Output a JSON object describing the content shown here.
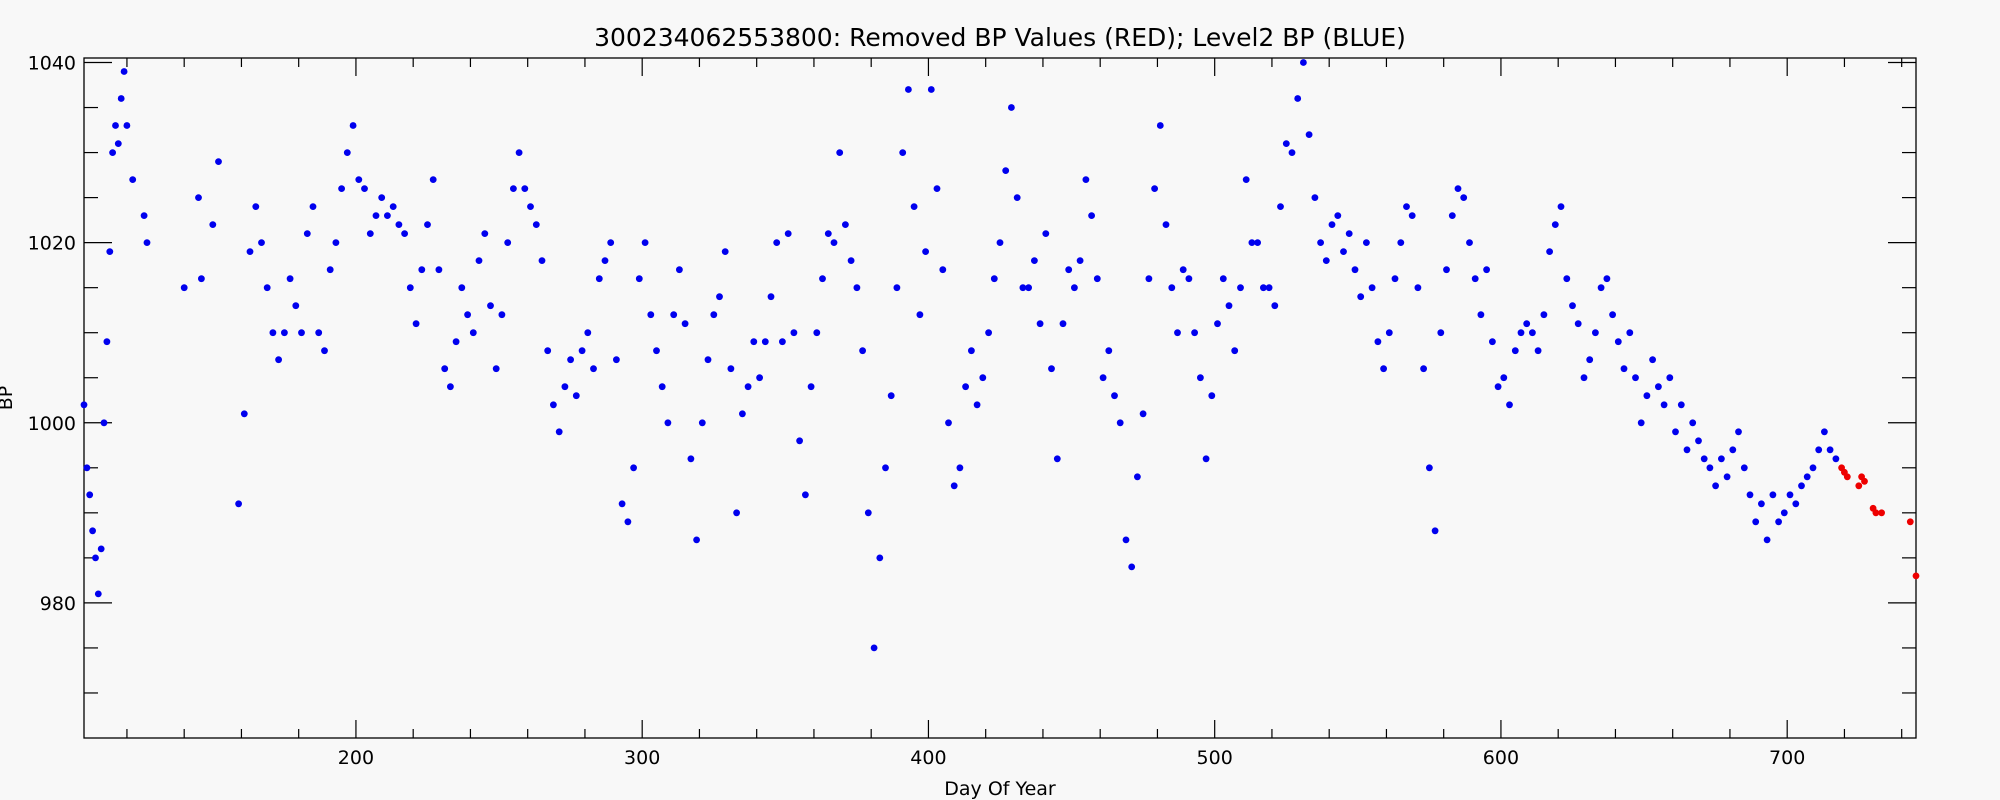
{
  "chart_data": {
    "type": "scatter",
    "title": "300234062553800: Removed BP Values (RED); Level2 BP (BLUE)",
    "xlabel": "Day Of Year",
    "ylabel": "BP",
    "xlim": [
      105,
      745
    ],
    "ylim": [
      965,
      1040.5
    ],
    "x_ticks": [
      200,
      300,
      400,
      500,
      600,
      700
    ],
    "y_ticks": [
      980,
      1000,
      1020,
      1040
    ],
    "grid": false,
    "series": [
      {
        "color": "#0000ee",
        "points": [
          [
            105,
            1002
          ],
          [
            106,
            995
          ],
          [
            107,
            992
          ],
          [
            108,
            988
          ],
          [
            109,
            985
          ],
          [
            110,
            981
          ],
          [
            111,
            986
          ],
          [
            112,
            1000
          ],
          [
            113,
            1009
          ],
          [
            114,
            1019
          ],
          [
            115,
            1030
          ],
          [
            116,
            1033
          ],
          [
            117,
            1031
          ],
          [
            118,
            1036
          ],
          [
            119,
            1039
          ],
          [
            120,
            1033
          ],
          [
            122,
            1027
          ],
          [
            126,
            1023
          ],
          [
            127,
            1020
          ],
          [
            140,
            1015
          ],
          [
            145,
            1025
          ],
          [
            146,
            1016
          ],
          [
            150,
            1022
          ],
          [
            152,
            1029
          ],
          [
            159,
            991
          ],
          [
            161,
            1001
          ],
          [
            163,
            1019
          ],
          [
            165,
            1024
          ],
          [
            167,
            1020
          ],
          [
            169,
            1015
          ],
          [
            171,
            1010
          ],
          [
            173,
            1007
          ],
          [
            175,
            1010
          ],
          [
            177,
            1016
          ],
          [
            179,
            1013
          ],
          [
            181,
            1010
          ],
          [
            183,
            1021
          ],
          [
            185,
            1024
          ],
          [
            187,
            1010
          ],
          [
            189,
            1008
          ],
          [
            191,
            1017
          ],
          [
            193,
            1020
          ],
          [
            195,
            1026
          ],
          [
            197,
            1030
          ],
          [
            199,
            1033
          ],
          [
            201,
            1027
          ],
          [
            203,
            1026
          ],
          [
            205,
            1021
          ],
          [
            207,
            1023
          ],
          [
            209,
            1025
          ],
          [
            211,
            1023
          ],
          [
            213,
            1024
          ],
          [
            215,
            1022
          ],
          [
            217,
            1021
          ],
          [
            219,
            1015
          ],
          [
            221,
            1011
          ],
          [
            223,
            1017
          ],
          [
            225,
            1022
          ],
          [
            227,
            1027
          ],
          [
            229,
            1017
          ],
          [
            231,
            1006
          ],
          [
            233,
            1004
          ],
          [
            235,
            1009
          ],
          [
            237,
            1015
          ],
          [
            239,
            1012
          ],
          [
            241,
            1010
          ],
          [
            243,
            1018
          ],
          [
            245,
            1021
          ],
          [
            247,
            1013
          ],
          [
            249,
            1006
          ],
          [
            251,
            1012
          ],
          [
            253,
            1020
          ],
          [
            255,
            1026
          ],
          [
            257,
            1030
          ],
          [
            259,
            1026
          ],
          [
            261,
            1024
          ],
          [
            263,
            1022
          ],
          [
            265,
            1018
          ],
          [
            267,
            1008
          ],
          [
            269,
            1002
          ],
          [
            271,
            999
          ],
          [
            273,
            1004
          ],
          [
            275,
            1007
          ],
          [
            277,
            1003
          ],
          [
            279,
            1008
          ],
          [
            281,
            1010
          ],
          [
            283,
            1006
          ],
          [
            285,
            1016
          ],
          [
            287,
            1018
          ],
          [
            289,
            1020
          ],
          [
            291,
            1007
          ],
          [
            293,
            991
          ],
          [
            295,
            989
          ],
          [
            297,
            995
          ],
          [
            299,
            1016
          ],
          [
            301,
            1020
          ],
          [
            303,
            1012
          ],
          [
            305,
            1008
          ],
          [
            307,
            1004
          ],
          [
            309,
            1000
          ],
          [
            311,
            1012
          ],
          [
            313,
            1017
          ],
          [
            315,
            1011
          ],
          [
            317,
            996
          ],
          [
            319,
            987
          ],
          [
            321,
            1000
          ],
          [
            323,
            1007
          ],
          [
            325,
            1012
          ],
          [
            327,
            1014
          ],
          [
            329,
            1019
          ],
          [
            331,
            1006
          ],
          [
            333,
            990
          ],
          [
            335,
            1001
          ],
          [
            337,
            1004
          ],
          [
            339,
            1009
          ],
          [
            341,
            1005
          ],
          [
            343,
            1009
          ],
          [
            345,
            1014
          ],
          [
            347,
            1020
          ],
          [
            349,
            1009
          ],
          [
            351,
            1021
          ],
          [
            353,
            1010
          ],
          [
            355,
            998
          ],
          [
            357,
            992
          ],
          [
            359,
            1004
          ],
          [
            361,
            1010
          ],
          [
            363,
            1016
          ],
          [
            365,
            1021
          ],
          [
            367,
            1020
          ],
          [
            369,
            1030
          ],
          [
            371,
            1022
          ],
          [
            373,
            1018
          ],
          [
            375,
            1015
          ],
          [
            377,
            1008
          ],
          [
            379,
            990
          ],
          [
            381,
            975
          ],
          [
            383,
            985
          ],
          [
            385,
            995
          ],
          [
            387,
            1003
          ],
          [
            389,
            1015
          ],
          [
            391,
            1030
          ],
          [
            393,
            1037
          ],
          [
            395,
            1024
          ],
          [
            397,
            1012
          ],
          [
            399,
            1019
          ],
          [
            401,
            1037
          ],
          [
            403,
            1026
          ],
          [
            405,
            1017
          ],
          [
            407,
            1000
          ],
          [
            409,
            993
          ],
          [
            411,
            995
          ],
          [
            413,
            1004
          ],
          [
            415,
            1008
          ],
          [
            417,
            1002
          ],
          [
            419,
            1005
          ],
          [
            421,
            1010
          ],
          [
            423,
            1016
          ],
          [
            425,
            1020
          ],
          [
            427,
            1028
          ],
          [
            429,
            1035
          ],
          [
            431,
            1025
          ],
          [
            433,
            1015
          ],
          [
            435,
            1015
          ],
          [
            437,
            1018
          ],
          [
            439,
            1011
          ],
          [
            441,
            1021
          ],
          [
            443,
            1006
          ],
          [
            445,
            996
          ],
          [
            447,
            1011
          ],
          [
            449,
            1017
          ],
          [
            451,
            1015
          ],
          [
            453,
            1018
          ],
          [
            455,
            1027
          ],
          [
            457,
            1023
          ],
          [
            459,
            1016
          ],
          [
            461,
            1005
          ],
          [
            463,
            1008
          ],
          [
            465,
            1003
          ],
          [
            467,
            1000
          ],
          [
            469,
            987
          ],
          [
            471,
            984
          ],
          [
            473,
            994
          ],
          [
            475,
            1001
          ],
          [
            477,
            1016
          ],
          [
            479,
            1026
          ],
          [
            481,
            1033
          ],
          [
            483,
            1022
          ],
          [
            485,
            1015
          ],
          [
            487,
            1010
          ],
          [
            489,
            1017
          ],
          [
            491,
            1016
          ],
          [
            493,
            1010
          ],
          [
            495,
            1005
          ],
          [
            497,
            996
          ],
          [
            499,
            1003
          ],
          [
            501,
            1011
          ],
          [
            503,
            1016
          ],
          [
            505,
            1013
          ],
          [
            507,
            1008
          ],
          [
            509,
            1015
          ],
          [
            511,
            1027
          ],
          [
            513,
            1020
          ],
          [
            515,
            1020
          ],
          [
            517,
            1015
          ],
          [
            519,
            1015
          ],
          [
            521,
            1013
          ],
          [
            523,
            1024
          ],
          [
            525,
            1031
          ],
          [
            527,
            1030
          ],
          [
            529,
            1036
          ],
          [
            531,
            1040
          ],
          [
            533,
            1032
          ],
          [
            535,
            1025
          ],
          [
            537,
            1020
          ],
          [
            539,
            1018
          ],
          [
            541,
            1022
          ],
          [
            543,
            1023
          ],
          [
            545,
            1019
          ],
          [
            547,
            1021
          ],
          [
            549,
            1017
          ],
          [
            551,
            1014
          ],
          [
            553,
            1020
          ],
          [
            555,
            1015
          ],
          [
            557,
            1009
          ],
          [
            559,
            1006
          ],
          [
            561,
            1010
          ],
          [
            563,
            1016
          ],
          [
            565,
            1020
          ],
          [
            567,
            1024
          ],
          [
            569,
            1023
          ],
          [
            571,
            1015
          ],
          [
            573,
            1006
          ],
          [
            575,
            995
          ],
          [
            577,
            988
          ],
          [
            579,
            1010
          ],
          [
            581,
            1017
          ],
          [
            583,
            1023
          ],
          [
            585,
            1026
          ],
          [
            587,
            1025
          ],
          [
            589,
            1020
          ],
          [
            591,
            1016
          ],
          [
            593,
            1012
          ],
          [
            595,
            1017
          ],
          [
            597,
            1009
          ],
          [
            599,
            1004
          ],
          [
            601,
            1005
          ],
          [
            603,
            1002
          ],
          [
            605,
            1008
          ],
          [
            607,
            1010
          ],
          [
            609,
            1011
          ],
          [
            611,
            1010
          ],
          [
            613,
            1008
          ],
          [
            615,
            1012
          ],
          [
            617,
            1019
          ],
          [
            619,
            1022
          ],
          [
            621,
            1024
          ],
          [
            623,
            1016
          ],
          [
            625,
            1013
          ],
          [
            627,
            1011
          ],
          [
            629,
            1005
          ],
          [
            631,
            1007
          ],
          [
            633,
            1010
          ],
          [
            635,
            1015
          ],
          [
            637,
            1016
          ],
          [
            639,
            1012
          ],
          [
            641,
            1009
          ],
          [
            643,
            1006
          ],
          [
            645,
            1010
          ],
          [
            647,
            1005
          ],
          [
            649,
            1000
          ],
          [
            651,
            1003
          ],
          [
            653,
            1007
          ],
          [
            655,
            1004
          ],
          [
            657,
            1002
          ],
          [
            659,
            1005
          ],
          [
            661,
            999
          ],
          [
            663,
            1002
          ],
          [
            665,
            997
          ],
          [
            667,
            1000
          ],
          [
            669,
            998
          ],
          [
            671,
            996
          ],
          [
            673,
            995
          ],
          [
            675,
            993
          ],
          [
            677,
            996
          ],
          [
            679,
            994
          ],
          [
            681,
            997
          ],
          [
            683,
            999
          ],
          [
            685,
            995
          ],
          [
            687,
            992
          ],
          [
            689,
            989
          ],
          [
            691,
            991
          ],
          [
            693,
            987
          ],
          [
            695,
            992
          ],
          [
            697,
            989
          ],
          [
            699,
            990
          ],
          [
            701,
            992
          ],
          [
            703,
            991
          ],
          [
            705,
            993
          ],
          [
            707,
            994
          ],
          [
            709,
            995
          ],
          [
            711,
            997
          ],
          [
            713,
            999
          ],
          [
            715,
            997
          ],
          [
            717,
            996
          ]
        ]
      },
      {
        "color": "#ee0000",
        "points": [
          [
            719,
            995
          ],
          [
            720,
            994.5
          ],
          [
            721,
            994
          ],
          [
            725,
            993
          ],
          [
            726,
            994
          ],
          [
            727,
            993.5
          ],
          [
            730,
            990.5
          ],
          [
            731,
            990
          ],
          [
            733,
            990
          ],
          [
            743,
            989
          ],
          [
            745,
            983
          ]
        ]
      }
    ]
  }
}
